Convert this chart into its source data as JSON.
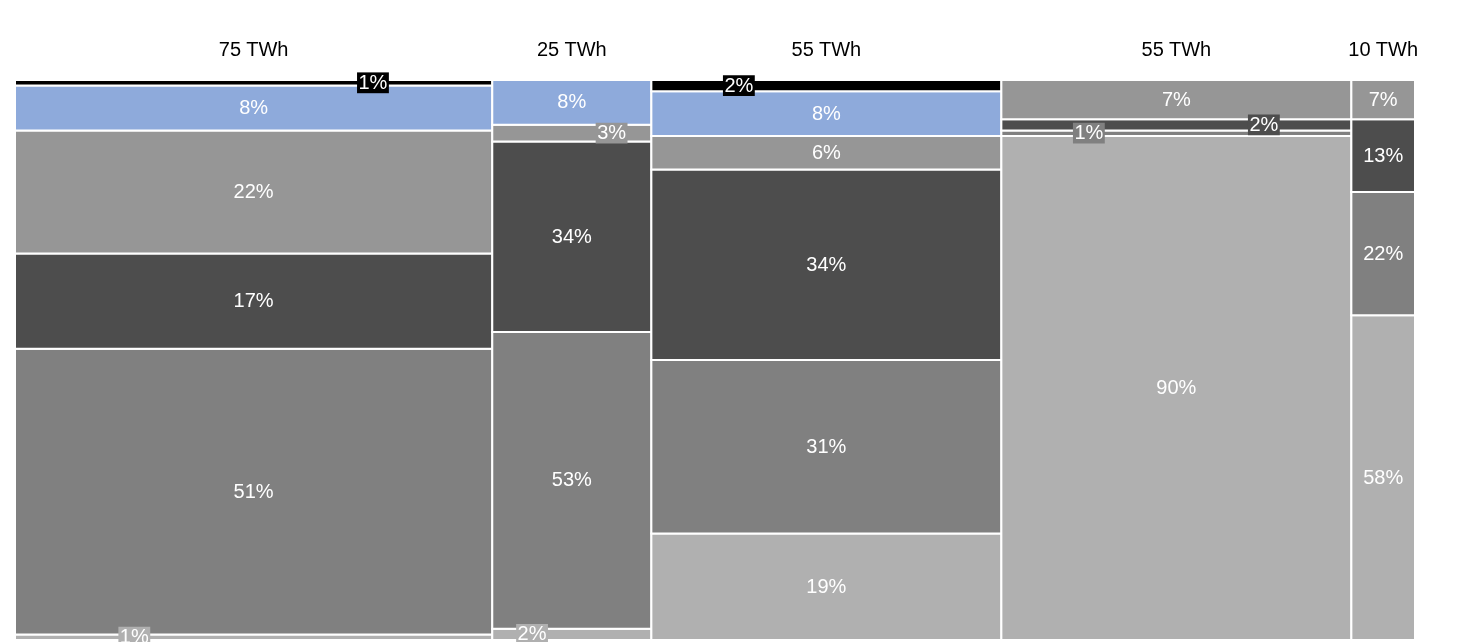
{
  "chart_data": {
    "type": "bar",
    "stacked": true,
    "categories": [
      "75 TWh",
      "25 TWh",
      "55 TWh",
      "55 TWh",
      "10 TWh"
    ],
    "series": [
      {
        "color": "#b0b0b0",
        "values": [
          1,
          2,
          19,
          90,
          58
        ],
        "value_labels": [
          "1%",
          "2%",
          "19%",
          "90%",
          "58%"
        ]
      },
      {
        "color": "#808080",
        "values": [
          51,
          53,
          31,
          1,
          22
        ],
        "value_labels": [
          "51%",
          "53%",
          "31%",
          "1%",
          "22%"
        ]
      },
      {
        "color": "#4d4d4d",
        "values": [
          17,
          34,
          34,
          2,
          13
        ],
        "value_labels": [
          "17%",
          "34%",
          "34%",
          "2%",
          "13%"
        ]
      },
      {
        "color": "#969696",
        "values": [
          22,
          3,
          6,
          7,
          7
        ],
        "value_labels": [
          "22%",
          "3%",
          "6%",
          "7%",
          "7%"
        ]
      },
      {
        "color": "#8eaadb",
        "values": [
          8,
          8,
          8,
          null,
          null
        ],
        "value_labels": [
          "8%",
          "8%",
          "8%",
          null,
          null
        ]
      },
      {
        "color": "#000000",
        "values": [
          1,
          null,
          2,
          null,
          null
        ],
        "value_labels": [
          "1%",
          null,
          "2%",
          null,
          null
        ]
      }
    ]
  }
}
